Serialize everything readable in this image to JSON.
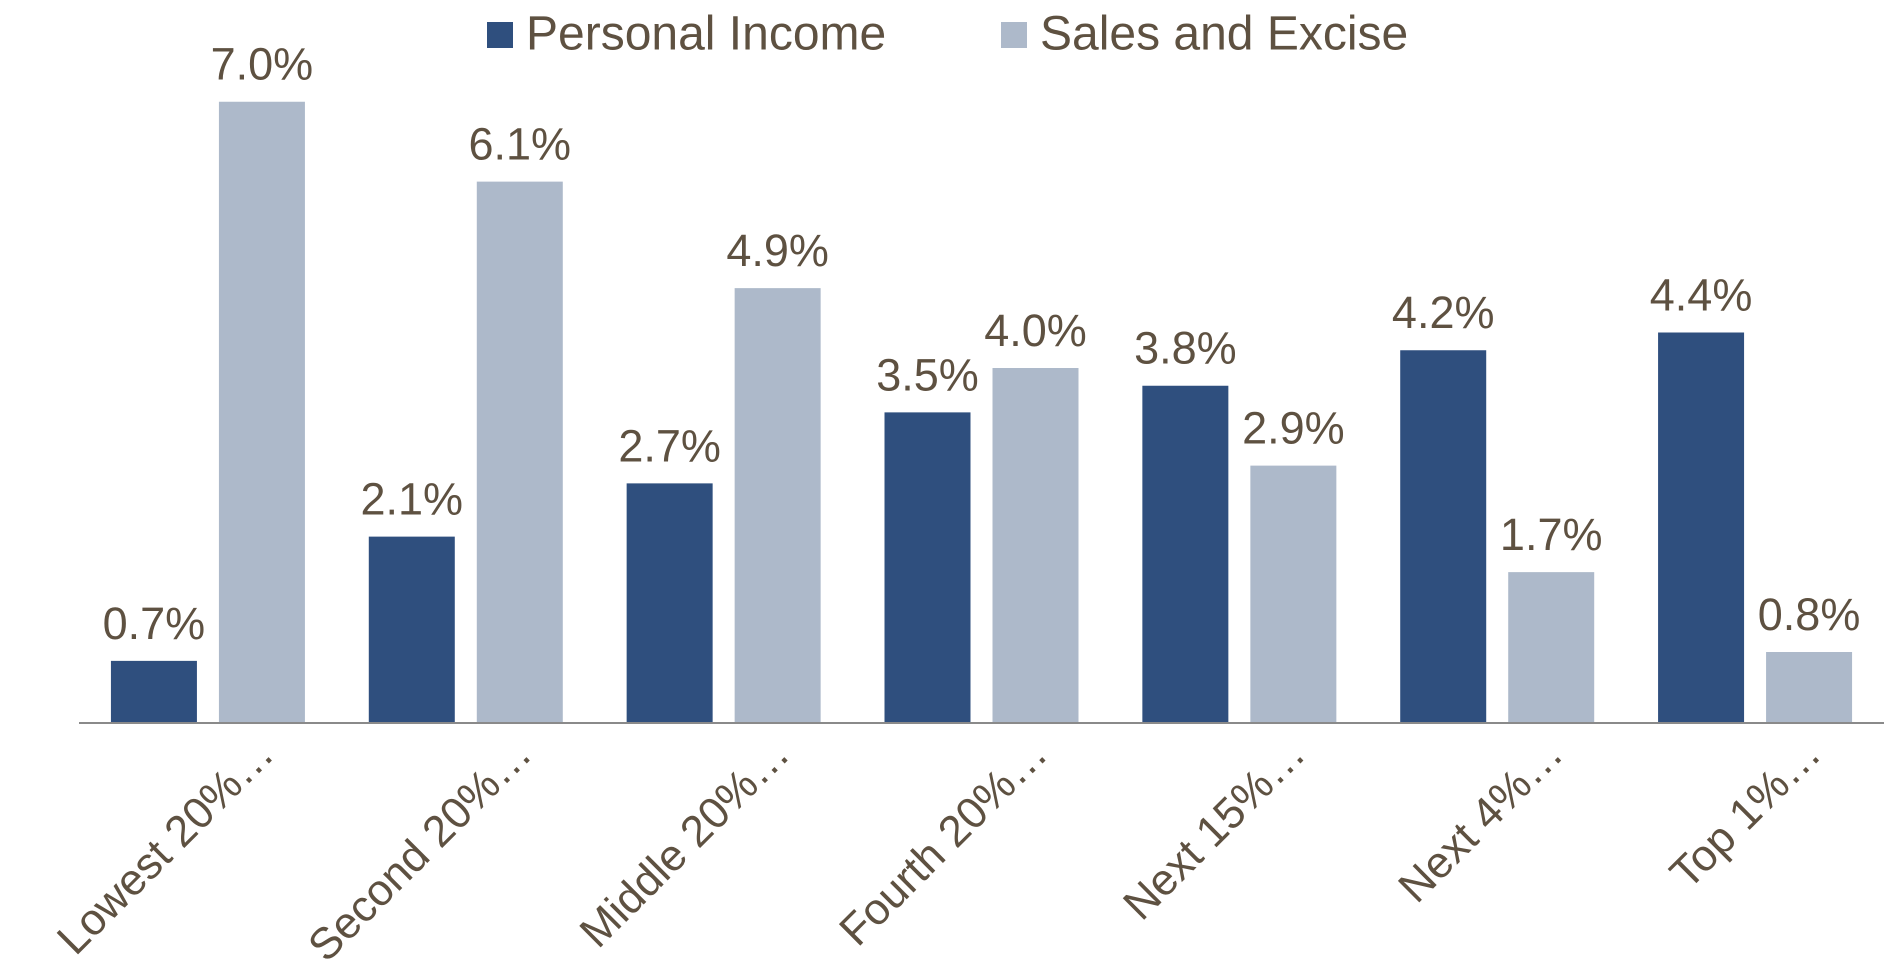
{
  "chart_data": {
    "type": "bar",
    "categories": [
      "Lowest 20%…",
      "Second 20%…",
      "Middle 20%…",
      "Fourth 20%…",
      "Next 15%…",
      "Next 4%…",
      "Top 1%…"
    ],
    "series": [
      {
        "name": "Personal Income",
        "color": "#2f4f7e",
        "values": [
          0.7,
          2.1,
          2.7,
          3.5,
          3.8,
          4.2,
          4.4
        ],
        "value_labels": [
          "0.7%",
          "2.1%",
          "2.7%",
          "3.5%",
          "3.8%",
          "4.2%",
          "4.4%"
        ]
      },
      {
        "name": "Sales and Excise",
        "color": "#adb9ca",
        "values": [
          7.0,
          6.1,
          4.9,
          4.0,
          2.9,
          1.7,
          0.8
        ],
        "value_labels": [
          "7.0%",
          "6.1%",
          "4.9%",
          "4.0%",
          "2.9%",
          "1.7%",
          "0.8%"
        ]
      }
    ],
    "ylim": [
      0,
      8
    ],
    "legend": "top"
  }
}
